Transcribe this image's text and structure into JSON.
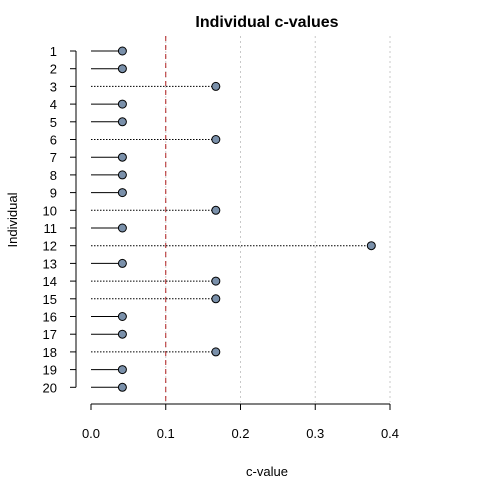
{
  "chart_data": {
    "type": "scatter",
    "title": "Individual c-values",
    "xlabel": "c-value",
    "ylabel": "Individual",
    "xlim": [
      0,
      0.4
    ],
    "xticks": [
      "0.0",
      "0.1",
      "0.2",
      "0.3",
      "0.4"
    ],
    "xtick_values": [
      0,
      0.1,
      0.2,
      0.3,
      0.4
    ],
    "grid": true,
    "threshold": 0.1,
    "threshold_color": "#b22222",
    "point_color": "#7a90aa",
    "categories": [
      "1",
      "2",
      "3",
      "4",
      "5",
      "6",
      "7",
      "8",
      "9",
      "10",
      "11",
      "12",
      "13",
      "14",
      "15",
      "16",
      "17",
      "18",
      "19",
      "20"
    ],
    "values": [
      0.042,
      0.042,
      0.167,
      0.042,
      0.042,
      0.167,
      0.042,
      0.042,
      0.042,
      0.167,
      0.042,
      0.375,
      0.042,
      0.167,
      0.167,
      0.042,
      0.042,
      0.167,
      0.042,
      0.042
    ]
  }
}
